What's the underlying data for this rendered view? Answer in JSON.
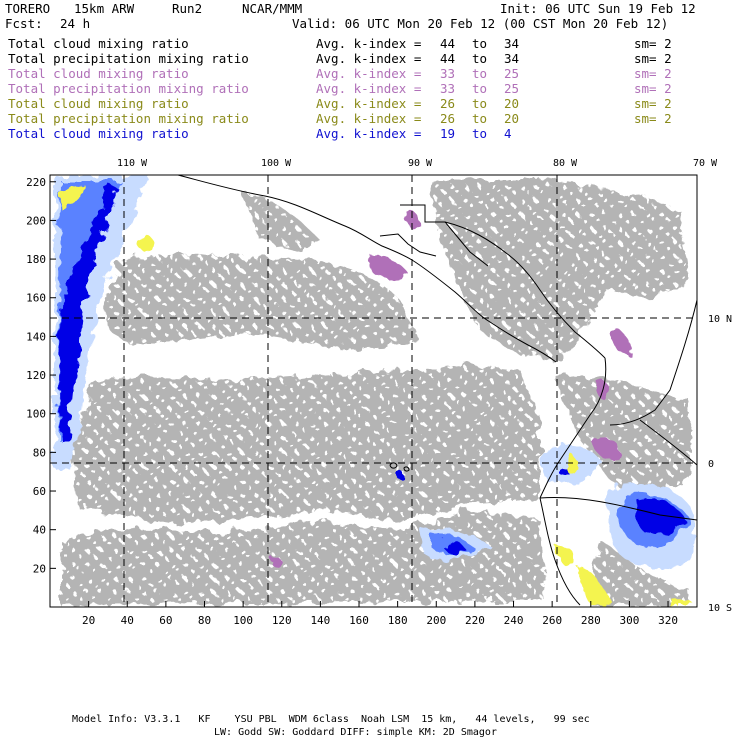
{
  "header": {
    "model": "TORERO",
    "resolution": "15km ARW",
    "run": "Run2",
    "org": "NCAR/MMM",
    "init": "Init: 06 UTC Sun 19 Feb 12",
    "fcst_label": "Fcst:",
    "fcst_value": "24 h",
    "valid": "Valid: 06 UTC Mon 20 Feb 12 (00 CST Mon 20 Feb 12)"
  },
  "legend": [
    {
      "name": "Total cloud mixing ratio",
      "avg": "Avg. k-index =",
      "k_from": "44",
      "to": "to",
      "k_to": "34",
      "sm": "sm= 2",
      "color": "#000000"
    },
    {
      "name": "Total precipitation mixing ratio",
      "avg": "Avg. k-index =",
      "k_from": "44",
      "to": "to",
      "k_to": "34",
      "sm": "sm= 2",
      "color": "#000000"
    },
    {
      "name": "Total cloud mixing ratio",
      "avg": "Avg. k-index =",
      "k_from": "33",
      "to": "to",
      "k_to": "25",
      "sm": "sm= 2",
      "color": "#b070b8"
    },
    {
      "name": "Total precipitation mixing ratio",
      "avg": "Avg. k-index =",
      "k_from": "33",
      "to": "to",
      "k_to": "25",
      "sm": "sm= 2",
      "color": "#b070b8"
    },
    {
      "name": "Total cloud mixing ratio",
      "avg": "Avg. k-index =",
      "k_from": "26",
      "to": "to",
      "k_to": "20",
      "sm": "sm= 2",
      "color": "#8a8a1a"
    },
    {
      "name": "Total precipitation mixing ratio",
      "avg": "Avg. k-index =",
      "k_from": "26",
      "to": "to",
      "k_to": "20",
      "sm": "sm= 2",
      "color": "#8a8a1a"
    },
    {
      "name": "Total cloud mixing ratio",
      "avg": "Avg. k-index =",
      "k_from": "19",
      "to": "to",
      "k_to": "4",
      "sm": "",
      "color": "#1010d0"
    }
  ],
  "map": {
    "lon_labels": [
      "110 W",
      "100 W",
      "90 W",
      "80 W",
      "70 W"
    ],
    "lat_labels": [
      "10 N",
      "0",
      "10 S"
    ],
    "x_ticks": [
      "20",
      "40",
      "60",
      "80",
      "100",
      "120",
      "140",
      "160",
      "180",
      "200",
      "220",
      "240",
      "260",
      "280",
      "300",
      "320"
    ],
    "y_ticks": [
      "20",
      "40",
      "60",
      "80",
      "100",
      "120",
      "140",
      "160",
      "180",
      "200",
      "220"
    ],
    "colors": {
      "low_cloud": "#b4b4b4",
      "mid_cloud": "#b070b8",
      "upper_cloud": "#f4f450",
      "precip_light": "#c8dcff",
      "precip_mid": "#5a82ff",
      "precip_heavy": "#0000e6",
      "coast": "#000000"
    }
  },
  "footer": {
    "line1": "Model Info: V3.3.1   KF    YSU PBL  WDM 6class  Noah LSM  15 km,   44 levels,   99 sec",
    "line2": "LW: Godd SW: Goddard DIFF: simple KM: 2D Smagor"
  }
}
